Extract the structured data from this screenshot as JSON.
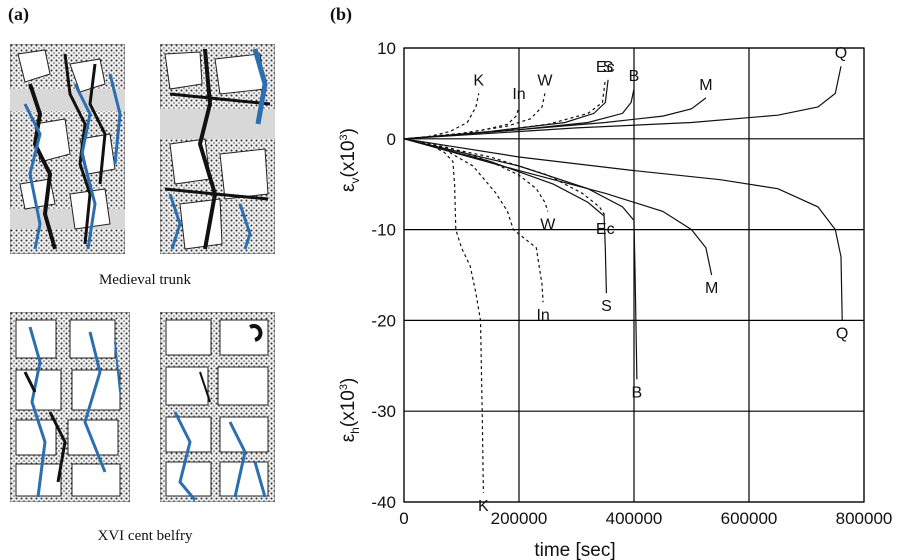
{
  "panel_a": {
    "label": "(a)",
    "caption_top": "Medieval trunk",
    "caption_bottom": "XVI cent belfry"
  },
  "panel_b": {
    "label": "(b)"
  },
  "chart_data": {
    "type": "line",
    "xlabel": "time [sec]",
    "ylabel_top": "ε",
    "ylabel_top_sub": "v",
    "ylabel_top_unit": "(x10",
    "ylabel_top_sup": "3",
    "ylabel_top_close": ")",
    "ylabel_bottom": "ε",
    "ylabel_bottom_sub": "h",
    "ylabel_bottom_unit": "(x10",
    "ylabel_bottom_sup": "3",
    "ylabel_bottom_close": ")",
    "xlim": [
      0,
      800000
    ],
    "ylim": [
      -40,
      10
    ],
    "x_ticks": [
      0,
      200000,
      400000,
      600000,
      800000
    ],
    "x_tick_labels": [
      "0",
      "200000",
      "400000",
      "600000",
      "800000"
    ],
    "y_ticks": [
      10,
      0,
      -10,
      -20,
      -30,
      -40
    ],
    "y_tick_labels": [
      "10",
      "0",
      "-10",
      "-20",
      "-30",
      "-40"
    ],
    "grid": true,
    "series": [
      {
        "name": "K",
        "style": "dashed",
        "v": [
          [
            0,
            0
          ],
          [
            40000,
            0.2
          ],
          [
            80000,
            0.8
          ],
          [
            110000,
            1.8
          ],
          [
            125000,
            3.5
          ],
          [
            130000,
            5
          ]
        ],
        "h": [
          [
            0,
            0
          ],
          [
            40000,
            -0.5
          ],
          [
            70000,
            -1.5
          ],
          [
            85000,
            -2.5
          ],
          [
            88000,
            -5
          ],
          [
            90000,
            -10
          ],
          [
            100000,
            -12
          ],
          [
            115000,
            -14
          ],
          [
            125000,
            -17
          ],
          [
            133000,
            -20
          ],
          [
            136000,
            -30
          ],
          [
            138000,
            -39
          ]
        ]
      },
      {
        "name": "In",
        "style": "dashed",
        "v": [
          [
            0,
            0
          ],
          [
            80000,
            0.4
          ],
          [
            140000,
            1.0
          ],
          [
            180000,
            1.6
          ],
          [
            195000,
            2.5
          ],
          [
            200000,
            3.5
          ]
        ],
        "h": [
          [
            0,
            0
          ],
          [
            60000,
            -0.8
          ],
          [
            120000,
            -3
          ],
          [
            160000,
            -6
          ],
          [
            180000,
            -8
          ],
          [
            190000,
            -10
          ],
          [
            210000,
            -11
          ],
          [
            230000,
            -12
          ],
          [
            235000,
            -14
          ],
          [
            240000,
            -16
          ],
          [
            242000,
            -18
          ]
        ]
      },
      {
        "name": "W",
        "style": "dashed",
        "v": [
          [
            0,
            0
          ],
          [
            100000,
            0.6
          ],
          [
            180000,
            1.4
          ],
          [
            220000,
            2.2
          ],
          [
            240000,
            3.5
          ],
          [
            245000,
            5
          ]
        ],
        "h": [
          [
            0,
            0
          ],
          [
            80000,
            -1
          ],
          [
            150000,
            -2.5
          ],
          [
            200000,
            -4
          ],
          [
            230000,
            -5.5
          ],
          [
            245000,
            -7
          ],
          [
            250000,
            -8
          ]
        ]
      },
      {
        "name": "Ec",
        "style": "dashed",
        "v": [
          [
            0,
            0
          ],
          [
            150000,
            0.8
          ],
          [
            250000,
            1.6
          ],
          [
            320000,
            2.8
          ],
          [
            345000,
            4
          ],
          [
            350000,
            6.5
          ]
        ],
        "h": [
          [
            0,
            0
          ],
          [
            150000,
            -2
          ],
          [
            250000,
            -4
          ],
          [
            310000,
            -6
          ],
          [
            340000,
            -7.5
          ],
          [
            350000,
            -8.5
          ]
        ]
      },
      {
        "name": "S",
        "style": "solid",
        "v": [
          [
            0,
            0
          ],
          [
            150000,
            0.8
          ],
          [
            280000,
            1.8
          ],
          [
            330000,
            2.8
          ],
          [
            350000,
            4
          ],
          [
            355000,
            6.5
          ]
        ],
        "h": [
          [
            0,
            0
          ],
          [
            150000,
            -2.5
          ],
          [
            260000,
            -5
          ],
          [
            320000,
            -7
          ],
          [
            348000,
            -8.5
          ],
          [
            350000,
            -12
          ],
          [
            352000,
            -17
          ]
        ]
      },
      {
        "name": "B",
        "style": "solid",
        "v": [
          [
            0,
            0
          ],
          [
            200000,
            1.0
          ],
          [
            320000,
            1.8
          ],
          [
            380000,
            2.8
          ],
          [
            395000,
            4
          ],
          [
            400000,
            5.5
          ]
        ],
        "h": [
          [
            0,
            0
          ],
          [
            200000,
            -3
          ],
          [
            320000,
            -5.5
          ],
          [
            380000,
            -7.5
          ],
          [
            400000,
            -9
          ],
          [
            402000,
            -15
          ],
          [
            405000,
            -26.5
          ]
        ]
      },
      {
        "name": "M",
        "style": "solid",
        "v": [
          [
            0,
            0
          ],
          [
            200000,
            1.0
          ],
          [
            350000,
            1.8
          ],
          [
            450000,
            2.5
          ],
          [
            500000,
            3.3
          ],
          [
            525000,
            4.5
          ]
        ],
        "h": [
          [
            0,
            0
          ],
          [
            200000,
            -3.5
          ],
          [
            350000,
            -6
          ],
          [
            450000,
            -8
          ],
          [
            500000,
            -10
          ],
          [
            525000,
            -12
          ],
          [
            535000,
            -15
          ]
        ]
      },
      {
        "name": "Q",
        "style": "solid",
        "v": [
          [
            0,
            0
          ],
          [
            300000,
            1.2
          ],
          [
            500000,
            1.8
          ],
          [
            650000,
            2.6
          ],
          [
            720000,
            3.5
          ],
          [
            750000,
            5
          ],
          [
            760000,
            8
          ]
        ],
        "h": [
          [
            0,
            0
          ],
          [
            200000,
            -2
          ],
          [
            400000,
            -3.5
          ],
          [
            550000,
            -4.5
          ],
          [
            650000,
            -5.5
          ],
          [
            720000,
            -7.5
          ],
          [
            750000,
            -10
          ],
          [
            760000,
            -13
          ],
          [
            762000,
            -20
          ]
        ]
      }
    ]
  }
}
